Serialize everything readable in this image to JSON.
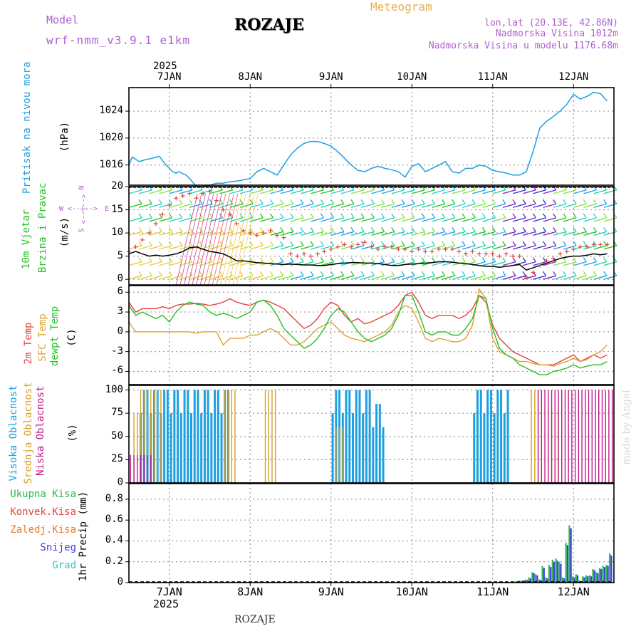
{
  "header": {
    "model_label": "Model",
    "model_name": "wrf-nmm_v3.9.1 e1km",
    "station": "ROZAJE",
    "meteogram": "Meteogram",
    "lonlat": "lon,lat (20.13E, 42.86N)",
    "altitude": "Nadmorska Visina 1012m",
    "model_altitude": "Nadmorska Visina u modelu 1176.68m"
  },
  "footer": {
    "station": "ROZAJE",
    "credit": "made by Angel"
  },
  "colors": {
    "pressure": "#1e9fe0",
    "temp2m": "#e8413c",
    "sfc_temp": "#e0a030",
    "dewpoint": "#22c122",
    "high_cloud": "#1e9fe0",
    "mid_cloud": "#d4a020",
    "low_cloud": "#c21a8c",
    "total_precip": "#2db84d",
    "conv_precip": "#e8413c",
    "frozen_precip": "#f07a20",
    "snow": "#4040e0",
    "graupel": "#30c8c8",
    "gust": "#e8413c",
    "wind": "#000000"
  },
  "chart_data": [
    {
      "type": "line",
      "panel": "pressure",
      "ylabel_title": "Pritisak na nivou mora",
      "ylabel_unit": "(hPa)",
      "yticks": [
        "1016",
        "1020",
        "1024"
      ],
      "ylim": [
        1013,
        1027.5
      ],
      "top_year": "2025",
      "top_dates": [
        "7JAN",
        "8JAN",
        "9JAN",
        "10JAN",
        "11JAN",
        "12JAN"
      ],
      "x_hours": [
        0,
        1,
        3,
        5,
        7,
        9,
        11,
        13,
        14,
        15,
        16,
        17,
        18,
        20,
        22,
        24,
        26,
        28,
        30,
        32,
        34,
        36,
        38,
        40,
        42,
        44,
        46,
        48,
        50,
        52,
        54,
        56,
        58,
        60,
        62,
        64,
        66,
        68,
        70,
        72,
        74,
        76,
        78,
        80,
        82,
        84,
        86,
        88,
        90,
        92,
        94,
        96,
        98,
        100,
        102,
        104,
        106,
        108,
        110,
        112,
        114,
        116,
        118,
        120,
        122,
        124,
        126,
        128,
        130,
        132,
        134,
        136,
        138,
        140,
        142
      ],
      "series": [
        {
          "values": [
            1016.0,
            1017.2,
            1016.5,
            1016.8,
            1017.0,
            1017.3,
            1016.0,
            1015.0,
            1014.8,
            1015.0,
            1014.7,
            1014.5,
            1014.0,
            1012.8,
            1012.8,
            1013.0,
            1013.3,
            1013.3,
            1013.5,
            1013.6,
            1013.8,
            1014.0,
            1015.0,
            1015.5,
            1015.0,
            1014.5,
            1016.0,
            1017.5,
            1018.5,
            1019.2,
            1019.5,
            1019.5,
            1019.2,
            1018.8,
            1018.0,
            1017.0,
            1016.0,
            1015.2,
            1015.0,
            1015.5,
            1015.8,
            1015.5,
            1015.3,
            1015.0,
            1014.2,
            1015.8,
            1016.2,
            1015.0,
            1015.5,
            1016.0,
            1016.5,
            1015.0,
            1014.8,
            1015.5,
            1015.5,
            1016.0,
            1015.8,
            1015.2,
            1015.0,
            1014.8,
            1014.5,
            1014.5,
            1015.0,
            1018.0,
            1021.5,
            1022.5,
            1023.2,
            1024.0,
            1025.0,
            1026.5,
            1025.8,
            1026.2,
            1026.8,
            1026.6,
            1025.5
          ]
        }
      ]
    },
    {
      "type": "line",
      "panel": "wind",
      "ylabel_title": "10m Vjetar",
      "ylabel_title2": "Brzina i Pravac",
      "ylabel_unit": "(m/s)",
      "direction_key": [
        "W",
        "<--|-->",
        "E",
        "S",
        "N"
      ],
      "yticks": [
        "0",
        "5",
        "10",
        "15",
        "20"
      ],
      "ylim": [
        -1.2,
        20
      ],
      "x_hours": [
        0,
        2,
        4,
        6,
        8,
        10,
        12,
        14,
        16,
        18,
        20,
        22,
        24,
        26,
        28,
        30,
        32,
        34,
        36,
        38,
        40,
        42,
        44,
        46,
        48,
        50,
        52,
        54,
        56,
        58,
        60,
        62,
        64,
        66,
        68,
        70,
        72,
        74,
        76,
        78,
        80,
        82,
        84,
        86,
        88,
        90,
        92,
        94,
        96,
        98,
        100,
        102,
        104,
        106,
        108,
        110,
        112,
        114,
        116,
        118,
        120,
        122,
        124,
        126,
        128,
        130,
        132,
        134,
        136,
        138,
        140,
        142
      ],
      "series": [
        {
          "name": "wind",
          "values": [
            5.5,
            6.0,
            5.5,
            5.0,
            5.2,
            5.0,
            5.2,
            5.5,
            6.0,
            6.8,
            7.0,
            6.5,
            6.0,
            5.8,
            5.5,
            4.8,
            4.0,
            4.0,
            3.8,
            3.6,
            3.5,
            3.4,
            3.3,
            3.2,
            3.3,
            3.2,
            3.1,
            3.1,
            3.0,
            3.0,
            3.2,
            3.4,
            3.5,
            3.6,
            3.6,
            3.5,
            3.5,
            3.4,
            3.2,
            3.0,
            3.0,
            3.2,
            3.3,
            3.4,
            3.5,
            3.6,
            3.8,
            3.8,
            3.7,
            3.5,
            3.4,
            3.2,
            3.0,
            2.8,
            2.8,
            2.6,
            2.8,
            3.0,
            3.2,
            2.0,
            2.5,
            3.0,
            3.5,
            4.0,
            4.5,
            4.8,
            5.0,
            5.0,
            5.2,
            5.5,
            5.3,
            5.5
          ]
        },
        {
          "name": "gust",
          "values": [
            6.0,
            7.0,
            8.5,
            10.0,
            12.0,
            14.0,
            16.0,
            17.5,
            18.0,
            18.5,
            17.5,
            18.5,
            19.0,
            17.0,
            15.0,
            14.0,
            12.0,
            10.5,
            10.0,
            9.5,
            10.0,
            10.5,
            9.5,
            9.0,
            5.5,
            5.0,
            5.5,
            5.0,
            5.5,
            6.0,
            6.5,
            7.0,
            7.5,
            7.0,
            7.5,
            8.0,
            7.0,
            6.5,
            7.0,
            7.0,
            6.5,
            6.5,
            6.0,
            6.5,
            6.0,
            6.0,
            6.5,
            6.5,
            6.5,
            6.0,
            5.5,
            6.0,
            5.5,
            5.5,
            5.5,
            5.0,
            5.5,
            5.0,
            5.0,
            0.5,
            1.5,
            3.0,
            4.0,
            4.5,
            5.5,
            6.0,
            6.5,
            7.0,
            7.0,
            7.5,
            7.5,
            7.5
          ]
        }
      ]
    },
    {
      "type": "line",
      "panel": "temperature",
      "ylabel_titles": [
        "2m Temp",
        "SFC Temp",
        "dewpt Temp"
      ],
      "ylabel_unit": "(C)",
      "yticks": [
        "-6",
        "-3",
        "0",
        "3",
        "6"
      ],
      "ylim": [
        -8,
        7
      ],
      "x_hours": [
        0,
        2,
        4,
        6,
        8,
        10,
        12,
        14,
        16,
        18,
        20,
        22,
        24,
        26,
        28,
        30,
        32,
        34,
        36,
        38,
        40,
        42,
        44,
        46,
        48,
        50,
        52,
        54,
        56,
        58,
        60,
        62,
        64,
        66,
        68,
        70,
        72,
        74,
        76,
        78,
        80,
        82,
        84,
        86,
        88,
        90,
        92,
        94,
        96,
        98,
        100,
        102,
        104,
        106,
        108,
        110,
        112,
        114,
        116,
        118,
        120,
        122,
        124,
        126,
        128,
        130,
        132,
        134,
        136,
        138,
        140,
        142
      ],
      "series": [
        {
          "name": "2m Temp",
          "values": [
            4.5,
            3.0,
            3.5,
            3.5,
            3.5,
            3.8,
            3.5,
            4.0,
            4.2,
            4.2,
            4.3,
            4.2,
            4.0,
            4.2,
            4.5,
            5.0,
            4.5,
            4.2,
            4.0,
            4.5,
            4.8,
            4.5,
            4.0,
            3.5,
            2.5,
            1.5,
            0.5,
            1.0,
            2.0,
            3.5,
            4.5,
            4.0,
            2.5,
            1.5,
            2.0,
            1.2,
            1.5,
            2.0,
            2.5,
            3.0,
            4.0,
            5.5,
            6.0,
            4.5,
            2.5,
            2.0,
            2.5,
            2.5,
            2.5,
            2.0,
            2.5,
            3.5,
            5.5,
            4.5,
            1.0,
            -1.0,
            -2.0,
            -3.0,
            -3.5,
            -4.0,
            -4.5,
            -5.0,
            -5.0,
            -5.0,
            -4.5,
            -4.0,
            -3.5,
            -4.5,
            -4.0,
            -3.5,
            -4.0,
            -3.5
          ]
        },
        {
          "name": "SFC Temp",
          "values": [
            1.5,
            0.0,
            0.0,
            0.0,
            0.0,
            0.0,
            0.0,
            0.0,
            0.0,
            0.0,
            -0.2,
            0.0,
            0.0,
            0.0,
            -2.0,
            -1.0,
            -1.0,
            -1.0,
            -0.5,
            -0.5,
            0.0,
            0.5,
            0.0,
            -1.0,
            -2.0,
            -2.0,
            -1.5,
            -0.5,
            0.5,
            1.0,
            1.5,
            0.5,
            -0.5,
            -1.0,
            -1.2,
            -1.5,
            -1.0,
            -0.5,
            0.0,
            1.0,
            3.0,
            4.0,
            3.5,
            1.5,
            -1.0,
            -1.5,
            -1.0,
            -1.2,
            -1.5,
            -1.5,
            -1.0,
            1.0,
            6.5,
            5.0,
            -1.0,
            -3.0,
            -3.5,
            -4.0,
            -4.5,
            -4.5,
            -4.8,
            -5.0,
            -5.0,
            -5.2,
            -4.8,
            -4.5,
            -4.0,
            -4.5,
            -4.2,
            -3.5,
            -3.0,
            -2.0
          ]
        },
        {
          "name": "dewpt Temp",
          "values": [
            4.0,
            2.5,
            3.0,
            2.5,
            2.0,
            2.5,
            1.5,
            3.0,
            4.0,
            4.5,
            4.2,
            4.0,
            3.0,
            2.5,
            2.8,
            2.5,
            2.0,
            2.5,
            3.0,
            4.5,
            4.8,
            4.0,
            2.5,
            0.5,
            -0.5,
            -1.5,
            -2.5,
            -2.0,
            -1.0,
            0.5,
            2.5,
            3.5,
            3.0,
            1.5,
            0.0,
            -1.0,
            -1.5,
            -1.0,
            -0.5,
            0.5,
            2.5,
            5.5,
            5.5,
            3.0,
            0.0,
            -0.5,
            0.0,
            0.0,
            -0.5,
            -0.5,
            0.5,
            2.0,
            5.5,
            5.0,
            0.5,
            -2.5,
            -3.5,
            -4.0,
            -5.0,
            -5.5,
            -6.0,
            -6.5,
            -6.5,
            -6.0,
            -5.8,
            -5.5,
            -5.0,
            -5.5,
            -5.2,
            -5.0,
            -5.0,
            -4.5
          ]
        }
      ]
    },
    {
      "type": "bar",
      "panel": "clouds",
      "ylabel_titles": [
        "Visoka Oblacnost",
        "Srednja Oblacnost",
        "Niska Oblacnost"
      ],
      "ylabel_unit": "(%)",
      "yticks": [
        "0",
        "25",
        "50",
        "75",
        "100"
      ],
      "ylim": [
        0,
        105
      ],
      "series": [
        {
          "name": "Visoka Oblacnost",
          "ranges": [
            [
              3,
              30,
              100
            ],
            [
              60,
              72,
              100
            ],
            [
              72,
              76,
              85
            ],
            [
              102,
              110,
              100
            ],
            [
              110,
              113,
              100
            ]
          ]
        },
        {
          "name": "Srednja Oblacnost",
          "ranges": [
            [
              1,
              3,
              75
            ],
            [
              3,
              10,
              100
            ],
            [
              28,
              32,
              100
            ],
            [
              40,
              44,
              100
            ],
            [
              61,
              64,
              60
            ],
            [
              119,
              123,
              100
            ],
            [
              124,
              128,
              80
            ]
          ]
        },
        {
          "name": "Niska Oblacnost",
          "ranges": [
            [
              0,
              7,
              30
            ],
            [
              121,
              144,
              100
            ]
          ]
        }
      ]
    },
    {
      "type": "bar",
      "panel": "precip",
      "ylabel_unit": "1hr Precip (mm)",
      "legend": [
        "Ukupna Kisa",
        "Konvek.Kisa",
        "Zaledj.Kisa",
        "Snijeg",
        "Grad"
      ],
      "yticks": [
        "0",
        "0.2",
        "0.4",
        "0.6",
        "0.8"
      ],
      "ylim": [
        0,
        0.95
      ],
      "bottom_dates": [
        "7JAN",
        "8JAN",
        "9JAN",
        "10JAN",
        "11JAN",
        "12JAN"
      ],
      "bottom_year": "2025",
      "x_hours": [
        115,
        116,
        117,
        118,
        119,
        120,
        121,
        122,
        123,
        124,
        125,
        126,
        127,
        128,
        129,
        130,
        131,
        132,
        133,
        134,
        135,
        136,
        137,
        138,
        139,
        140,
        141,
        142,
        143
      ],
      "series": [
        {
          "name": "Ukupna Kisa",
          "values": [
            0.01,
            0.02,
            0.02,
            0.03,
            0.05,
            0.1,
            0.08,
            0.03,
            0.16,
            0.05,
            0.17,
            0.22,
            0.23,
            0.2,
            0.05,
            0.38,
            0.55,
            0.06,
            0.08,
            0.02,
            0.06,
            0.07,
            0.07,
            0.13,
            0.1,
            0.14,
            0.16,
            0.17,
            0.28
          ]
        },
        {
          "name": "Snijeg",
          "values": [
            0.01,
            0.015,
            0.02,
            0.025,
            0.04,
            0.09,
            0.07,
            0.025,
            0.14,
            0.04,
            0.15,
            0.2,
            0.21,
            0.18,
            0.04,
            0.36,
            0.52,
            0.05,
            0.07,
            0.015,
            0.05,
            0.06,
            0.06,
            0.12,
            0.09,
            0.13,
            0.15,
            0.16,
            0.26
          ]
        }
      ]
    }
  ]
}
